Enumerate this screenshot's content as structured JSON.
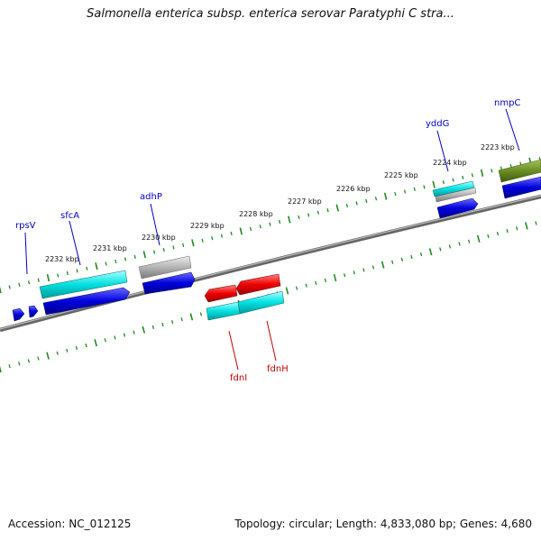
{
  "title": "Salmonella enterica subsp. enterica serovar Paratyphi C stra...",
  "footer": {
    "accession": "Accession: NC_012125",
    "summary": "Topology: circular; Length: 4,833,080 bp; Genes: 4,680"
  },
  "ticks": [
    {
      "label": "2223 kbp"
    },
    {
      "label": "2224 kbp"
    },
    {
      "label": "2225 kbp"
    },
    {
      "label": "2226 kbp"
    },
    {
      "label": "2227 kbp"
    },
    {
      "label": "2228 kbp"
    },
    {
      "label": "2229 kbp"
    },
    {
      "label": "2230 kbp"
    },
    {
      "label": "2231 kbp"
    },
    {
      "label": "2232 kbp"
    }
  ],
  "gene_labels": [
    {
      "name": "nmpC",
      "color": "#0000cc"
    },
    {
      "name": "yddG",
      "color": "#0000cc"
    },
    {
      "name": "adhP",
      "color": "#0000cc"
    },
    {
      "name": "sfcA",
      "color": "#0000cc"
    },
    {
      "name": "rpsV",
      "color": "#0000cc"
    },
    {
      "name": "fdnI",
      "color": "#cc0000"
    },
    {
      "name": "fdnH",
      "color": "#cc0000"
    }
  ],
  "colors": {
    "backbone": "#888888",
    "tick": "#228822",
    "blue": "#0000dd",
    "cyan": "#00dddd",
    "red": "#ee0000",
    "olive": "#6b8e23",
    "gray": "#aaaaaa"
  }
}
